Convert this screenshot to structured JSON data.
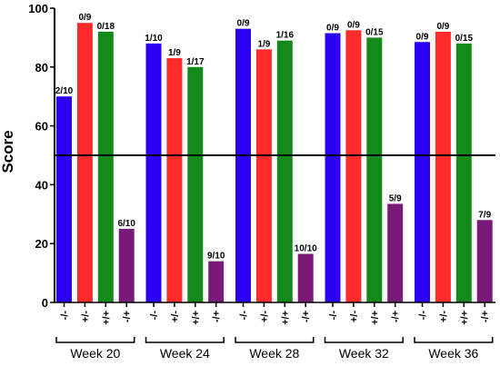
{
  "chart_data": {
    "type": "bar",
    "ylabel": "Score",
    "ylim": [
      0,
      100
    ],
    "yticks": [
      0,
      20,
      40,
      60,
      80,
      100
    ],
    "reference_line": 50,
    "categories": [
      "-/-",
      "+/-",
      "+/+",
      "-/+"
    ],
    "category_colors": [
      "#2b00f0",
      "#ff2a2a",
      "#138a1a",
      "#7a1a78"
    ],
    "groups": [
      {
        "label": "Week 20",
        "bars": [
          {
            "category": "-/-",
            "value": 70,
            "label": "2/10"
          },
          {
            "category": "+/-",
            "value": 95,
            "label": "0/9"
          },
          {
            "category": "+/+",
            "value": 92,
            "label": "0/18"
          },
          {
            "category": "-/+",
            "value": 25,
            "label": "6/10"
          }
        ]
      },
      {
        "label": "Week 24",
        "bars": [
          {
            "category": "-/-",
            "value": 88,
            "label": "1/10"
          },
          {
            "category": "+/-",
            "value": 83,
            "label": "1/9"
          },
          {
            "category": "+/+",
            "value": 80,
            "label": "1/17"
          },
          {
            "category": "-/+",
            "value": 14,
            "label": "9/10"
          }
        ]
      },
      {
        "label": "Week 28",
        "bars": [
          {
            "category": "-/-",
            "value": 93,
            "label": "0/9"
          },
          {
            "category": "+/-",
            "value": 86,
            "label": "1/9"
          },
          {
            "category": "+/+",
            "value": 89,
            "label": "1/16"
          },
          {
            "category": "-/+",
            "value": 16.5,
            "label": "10/10"
          }
        ]
      },
      {
        "label": "Week 32",
        "bars": [
          {
            "category": "-/-",
            "value": 91.5,
            "label": "0/9"
          },
          {
            "category": "+/-",
            "value": 92.5,
            "label": "0/9"
          },
          {
            "category": "+/+",
            "value": 90,
            "label": "0/15"
          },
          {
            "category": "-/+",
            "value": 33.5,
            "label": "5/9"
          }
        ]
      },
      {
        "label": "Week 36",
        "bars": [
          {
            "category": "-/-",
            "value": 88.5,
            "label": "0/9"
          },
          {
            "category": "+/-",
            "value": 92,
            "label": "0/9"
          },
          {
            "category": "+/+",
            "value": 88,
            "label": "0/15"
          },
          {
            "category": "-/+",
            "value": 28,
            "label": "7/9"
          }
        ]
      }
    ]
  }
}
